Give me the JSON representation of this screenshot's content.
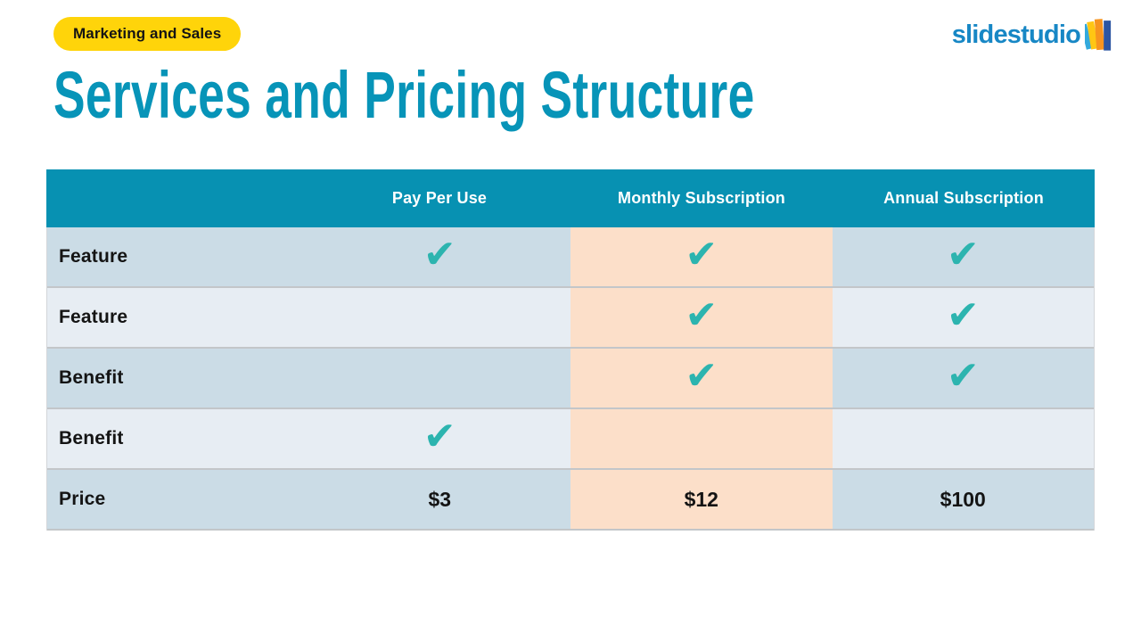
{
  "badge": {
    "label": "Marketing and Sales"
  },
  "logo": {
    "text": "slidestudio"
  },
  "title": "Services and Pricing Structure",
  "table": {
    "columns": [
      "",
      "Pay Per Use",
      "Monthly Subscription",
      "Annual Subscription"
    ],
    "highlight_column": "Monthly Subscription",
    "rows": [
      {
        "label": "Feature",
        "values": [
          "check",
          "check",
          "check"
        ]
      },
      {
        "label": "Feature",
        "values": [
          "",
          "check",
          "check"
        ]
      },
      {
        "label": "Benefit",
        "values": [
          "",
          "check",
          "check"
        ]
      },
      {
        "label": "Benefit",
        "values": [
          "check",
          "",
          ""
        ]
      },
      {
        "label": "Price",
        "values": [
          "$3",
          "$12",
          "$100"
        ]
      }
    ]
  },
  "icons": {
    "check": "✔"
  },
  "colors": {
    "header_teal": "#0791B2",
    "title_teal": "#0794B8",
    "row_dark": "#CBDCE6",
    "row_light": "#E7EDF3",
    "highlight_peach": "#FCDFC9",
    "check_teal": "#2CB4AF",
    "divider_gray": "#C3C6C9",
    "edge_gray": "#D3D6D9",
    "badge_yellow": "#FFD40A",
    "logo_blue": "#1787C5",
    "logo_bar_lightblue": "#33A9DC",
    "logo_bar_yellow": "#FFC613",
    "logo_bar_orange": "#F7941E",
    "logo_bar_darkblue": "#2B55A2"
  }
}
